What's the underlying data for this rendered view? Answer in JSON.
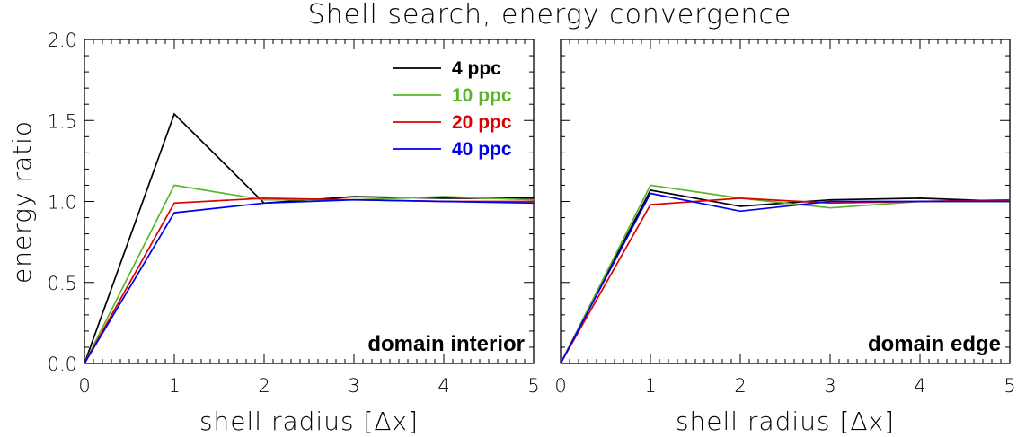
{
  "chart_data": {
    "type": "line",
    "title": "Shell search, energy convergence",
    "ylabel": "energy ratio",
    "xlabel": "shell radius [Δx]",
    "x": [
      0,
      1,
      2,
      3,
      4,
      5
    ],
    "xlim": [
      0,
      5
    ],
    "ylim": [
      0,
      2.0
    ],
    "xticks": [
      "0",
      "1",
      "2",
      "3",
      "4",
      "5"
    ],
    "yticks": [
      "0.0",
      "0.5",
      "1.0",
      "1.5",
      "2.0"
    ],
    "legend_placement": "top-right of left panel",
    "panels": [
      {
        "annotation": "domain interior",
        "series": [
          {
            "name": "4 ppc",
            "color": "#000000",
            "values": [
              0,
              1.54,
              0.99,
              1.03,
              1.02,
              1.02
            ]
          },
          {
            "name": "10 ppc",
            "color": "#5ab52a",
            "values": [
              0,
              1.1,
              1.01,
              1.01,
              1.03,
              1.01
            ]
          },
          {
            "name": "20 ppc",
            "color": "#dd0000",
            "values": [
              0,
              0.99,
              1.02,
              1.01,
              1.0,
              1.0
            ]
          },
          {
            "name": "40 ppc",
            "color": "#0000ee",
            "values": [
              0,
              0.93,
              0.99,
              1.01,
              1.0,
              0.99
            ]
          }
        ]
      },
      {
        "annotation": "domain edge",
        "series": [
          {
            "name": "4 ppc",
            "color": "#000000",
            "values": [
              0,
              1.07,
              0.97,
              1.01,
              1.02,
              1.0
            ]
          },
          {
            "name": "10 ppc",
            "color": "#5ab52a",
            "values": [
              0,
              1.1,
              1.02,
              0.96,
              1.0,
              1.0
            ]
          },
          {
            "name": "20 ppc",
            "color": "#dd0000",
            "values": [
              0,
              0.98,
              1.02,
              0.99,
              1.0,
              1.01
            ]
          },
          {
            "name": "40 ppc",
            "color": "#0000ee",
            "values": [
              0,
              1.05,
              0.94,
              1.0,
              1.0,
              1.0
            ]
          }
        ]
      }
    ]
  }
}
